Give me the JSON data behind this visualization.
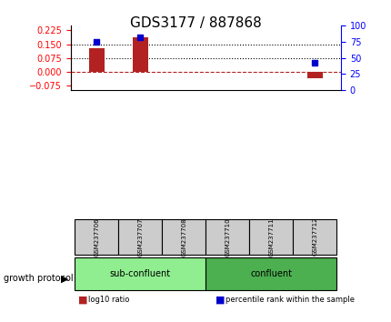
{
  "title": "GDS3177 / 887868",
  "samples": [
    "GSM237706",
    "GSM237707",
    "GSM237708",
    "GSM237710",
    "GSM237711",
    "GSM237712"
  ],
  "log10_ratio": [
    0.13,
    0.185,
    0.0,
    0.0,
    0.0,
    -0.037
  ],
  "percentile_rank": [
    75,
    82,
    null,
    null,
    null,
    42
  ],
  "ylim_left": [
    -0.1,
    0.25
  ],
  "ylim_right": [
    0,
    100
  ],
  "yticks_left": [
    -0.075,
    0,
    0.075,
    0.15,
    0.225
  ],
  "yticks_right": [
    0,
    25,
    50,
    75,
    100
  ],
  "hlines": [
    0.075,
    0.15
  ],
  "bar_color": "#b22222",
  "dot_color": "#0000cc",
  "zero_line_color": "#b22222",
  "groups": [
    {
      "label": "sub-confluent",
      "indices": [
        0,
        1,
        2
      ],
      "color": "#90ee90"
    },
    {
      "label": "confluent",
      "indices": [
        3,
        4,
        5
      ],
      "color": "#4caf50"
    }
  ],
  "group_label": "growth protocol",
  "legend_items": [
    {
      "label": "log10 ratio",
      "color": "#b22222",
      "marker": "s"
    },
    {
      "label": "percentile rank within the sample",
      "color": "#0000cc",
      "marker": "s"
    }
  ],
  "background_color": "#ffffff",
  "plot_bg": "#ffffff",
  "tick_bg": "#cccccc"
}
